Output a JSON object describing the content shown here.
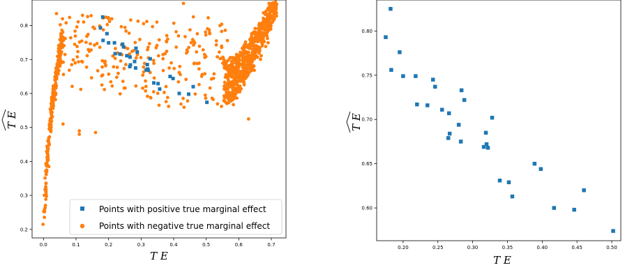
{
  "chart_data": [
    {
      "type": "scatter",
      "title": "",
      "xlabel": "TE",
      "ylabel": "TE-hat",
      "xlim": [
        -0.035,
        0.745
      ],
      "ylim": [
        0.175,
        0.875
      ],
      "xticks": [
        "0.0",
        "0.1",
        "0.2",
        "0.3",
        "0.4",
        "0.5",
        "0.6",
        "0.7"
      ],
      "yticks": [
        "0.2",
        "0.3",
        "0.4",
        "0.5",
        "0.6",
        "0.7",
        "0.8"
      ],
      "grid": false,
      "legend_position": "bottom-right",
      "series": [
        {
          "name": "Points with positive true marginal effect",
          "color": "#1f77b4",
          "marker": "square",
          "points": [
            [
              0.175,
              0.793
            ],
            [
              0.182,
              0.825
            ],
            [
              0.183,
              0.756
            ],
            [
              0.195,
              0.776
            ],
            [
              0.2,
              0.749
            ],
            [
              0.218,
              0.749
            ],
            [
              0.22,
              0.717
            ],
            [
              0.235,
              0.716
            ],
            [
              0.243,
              0.745
            ],
            [
              0.246,
              0.737
            ],
            [
              0.256,
              0.711
            ],
            [
              0.265,
              0.679
            ],
            [
              0.266,
              0.707
            ],
            [
              0.267,
              0.684
            ],
            [
              0.28,
              0.694
            ],
            [
              0.283,
              0.675
            ],
            [
              0.284,
              0.733
            ],
            [
              0.288,
              0.722
            ],
            [
              0.316,
              0.669
            ],
            [
              0.319,
              0.685
            ],
            [
              0.32,
              0.672
            ],
            [
              0.322,
              0.668
            ],
            [
              0.328,
              0.702
            ],
            [
              0.339,
              0.631
            ],
            [
              0.352,
              0.629
            ],
            [
              0.357,
              0.613
            ],
            [
              0.389,
              0.65
            ],
            [
              0.398,
              0.644
            ],
            [
              0.417,
              0.6
            ],
            [
              0.446,
              0.598
            ],
            [
              0.46,
              0.62
            ],
            [
              0.502,
              0.574
            ]
          ]
        },
        {
          "name": "Points with negative true marginal effect",
          "color": "#ff7f0e",
          "marker": "circle"
        }
      ]
    },
    {
      "type": "scatter",
      "title": "",
      "xlabel": "TE",
      "ylabel": "TE-hat",
      "xlim": [
        0.162,
        0.513
      ],
      "ylim": [
        0.563,
        0.835
      ],
      "xticks": [
        "0.20",
        "0.25",
        "0.30",
        "0.35",
        "0.40",
        "0.45",
        "0.50"
      ],
      "yticks": [
        "0.60",
        "0.65",
        "0.70",
        "0.75",
        "0.80"
      ],
      "grid": false,
      "series": [
        {
          "color": "#1f77b4",
          "marker": "square",
          "points": [
            [
              0.175,
              0.793
            ],
            [
              0.182,
              0.825
            ],
            [
              0.183,
              0.756
            ],
            [
              0.195,
              0.776
            ],
            [
              0.2,
              0.749
            ],
            [
              0.218,
              0.749
            ],
            [
              0.22,
              0.717
            ],
            [
              0.235,
              0.716
            ],
            [
              0.243,
              0.745
            ],
            [
              0.246,
              0.737
            ],
            [
              0.256,
              0.711
            ],
            [
              0.265,
              0.679
            ],
            [
              0.266,
              0.707
            ],
            [
              0.267,
              0.684
            ],
            [
              0.28,
              0.694
            ],
            [
              0.283,
              0.675
            ],
            [
              0.284,
              0.733
            ],
            [
              0.288,
              0.722
            ],
            [
              0.316,
              0.669
            ],
            [
              0.319,
              0.685
            ],
            [
              0.32,
              0.672
            ],
            [
              0.322,
              0.668
            ],
            [
              0.328,
              0.702
            ],
            [
              0.339,
              0.631
            ],
            [
              0.352,
              0.629
            ],
            [
              0.357,
              0.613
            ],
            [
              0.389,
              0.65
            ],
            [
              0.398,
              0.644
            ],
            [
              0.417,
              0.6
            ],
            [
              0.446,
              0.598
            ],
            [
              0.46,
              0.62
            ],
            [
              0.502,
              0.574
            ]
          ]
        }
      ]
    }
  ],
  "legend": {
    "positive_label": "Points with positive true marginal effect",
    "negative_label": "Points with negative true marginal effect"
  }
}
